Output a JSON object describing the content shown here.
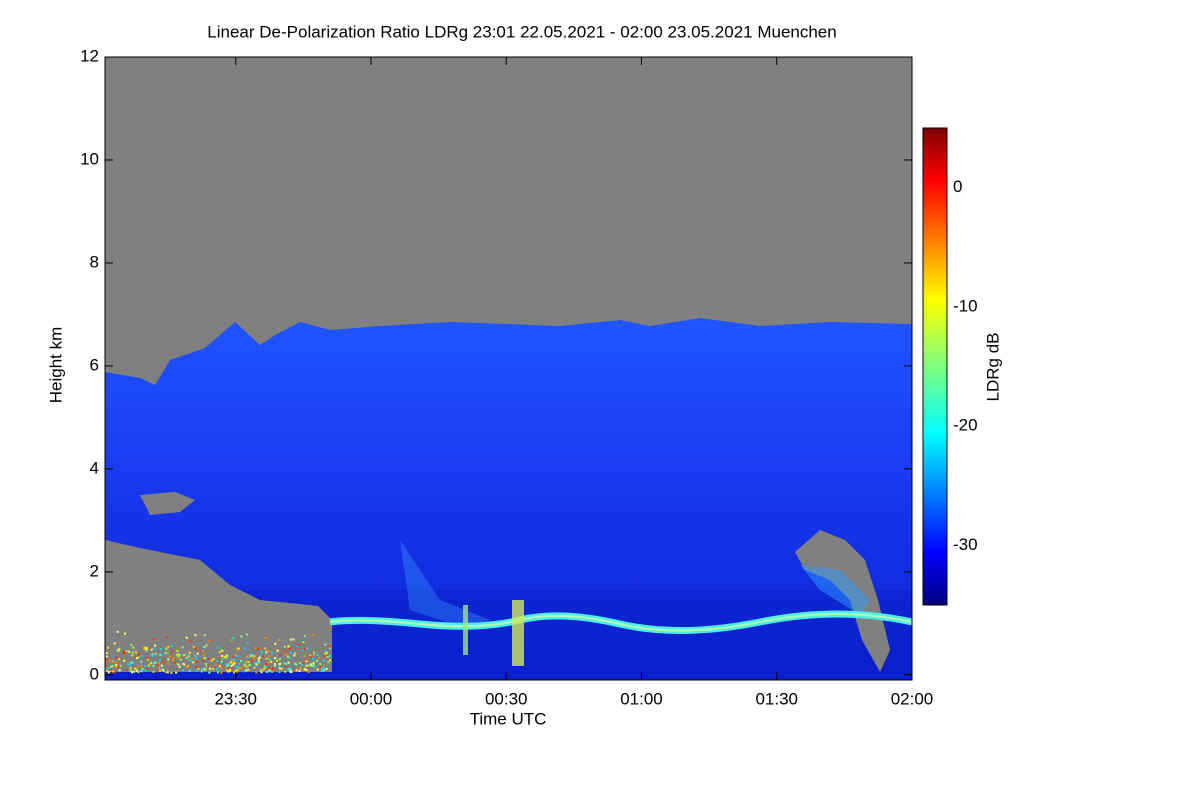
{
  "chart_data": {
    "type": "heatmap",
    "title": "Linear De-Polarization Ratio LDRg   23:01 22.05.2021 - 02:00 23.05.2021 Muenchen",
    "xlabel": "Time UTC",
    "ylabel": "Height km",
    "xlim": [
      1381,
      1560
    ],
    "xticks": [
      {
        "value": 1410,
        "label": "23:30"
      },
      {
        "value": 1440,
        "label": "00:00"
      },
      {
        "value": 1470,
        "label": "00:30"
      },
      {
        "value": 1500,
        "label": "01:00"
      },
      {
        "value": 1530,
        "label": "01:30"
      },
      {
        "value": 1560,
        "label": "02:00"
      }
    ],
    "ylim": [
      -0.1,
      12
    ],
    "yticks": [
      0,
      2,
      4,
      6,
      8,
      10,
      12
    ],
    "colorbar": {
      "label": "LDRg dB",
      "colormap": "jet",
      "clim": [
        -35,
        5
      ],
      "ticks": [
        0,
        -10,
        -20,
        -30
      ]
    }
  }
}
